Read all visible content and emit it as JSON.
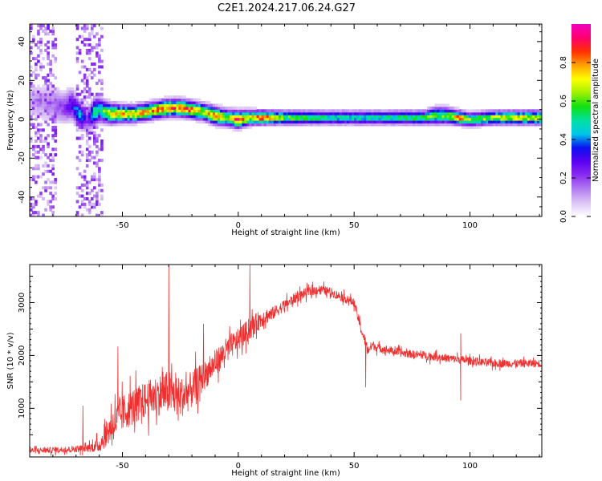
{
  "figure": {
    "title": "C2E1.2024.217.06.24.G27"
  },
  "colors": {
    "snr_line": "#ee3030",
    "colormap": [
      "#ffffff",
      "#dcc6f5",
      "#b27cf0",
      "#8a2df0",
      "#5a00f0",
      "#0a10f0",
      "#00c8e8",
      "#00e0a0",
      "#10e010",
      "#a0f000",
      "#ffff00",
      "#ffa000",
      "#ff3000",
      "#ff0070",
      "#f000c0"
    ]
  },
  "chart_data": [
    {
      "type": "heatmap",
      "title": "",
      "xlabel": "Height of straight line (km)",
      "ylabel": "Frequency (Hz)",
      "xlim": [
        -90,
        131
      ],
      "ylim": [
        -50,
        49
      ],
      "xticks": [
        -50,
        0,
        50,
        100
      ],
      "yticks": [
        -40,
        -20,
        0,
        20,
        40
      ],
      "colorbar": {
        "label": "Normalized spectral amplitude",
        "range": [
          0,
          1
        ],
        "ticks": [
          0.0,
          0.2,
          0.4,
          0.6,
          0.8
        ]
      },
      "ridge": {
        "x": [
          -90,
          -80,
          -75,
          -72,
          -68,
          -65,
          -62,
          -60,
          -55,
          -50,
          -45,
          -40,
          -35,
          -30,
          -25,
          -20,
          -15,
          -10,
          -5,
          0,
          5,
          10,
          20,
          40,
          60,
          80,
          85,
          90,
          95,
          100,
          110,
          120,
          131
        ],
        "frequency_hz": [
          10,
          8,
          6,
          8,
          2,
          0,
          4,
          5,
          3,
          3,
          3,
          4,
          5,
          6,
          6,
          5,
          4,
          2,
          1,
          0,
          1,
          1,
          1,
          1,
          1,
          1,
          2,
          2,
          1,
          0,
          1,
          1,
          1
        ],
        "amplitude": [
          0.1,
          0.15,
          0.2,
          0.3,
          0.45,
          0.2,
          0.55,
          0.5,
          0.7,
          0.75,
          0.75,
          0.78,
          0.8,
          0.82,
          0.8,
          0.85,
          0.65,
          0.85,
          0.6,
          0.9,
          0.7,
          0.85,
          0.6,
          0.5,
          0.5,
          0.55,
          0.6,
          0.55,
          0.85,
          0.6,
          0.65,
          0.7,
          0.7
        ],
        "bandwidth_hz": [
          6,
          6,
          5,
          5,
          4,
          4,
          4,
          3.5,
          3,
          2.5,
          2.5,
          2.5,
          2.5,
          2.5,
          2.5,
          2.5,
          2.5,
          2.5,
          2.5,
          2.5,
          2.2,
          2,
          2,
          2,
          2,
          2,
          2.5,
          2.5,
          2,
          2,
          2,
          2,
          2
        ]
      },
      "noise_band": {
        "x_range": [
          -90,
          -58
        ],
        "amplitude": 0.2
      }
    },
    {
      "type": "line",
      "title": "",
      "xlabel": "Height of straight line (km)",
      "ylabel": "SNR (10 * v/v)",
      "xlim": [
        -90,
        131
      ],
      "ylim": [
        80,
        3720
      ],
      "xticks": [
        -50,
        0,
        50,
        100
      ],
      "yticks": [
        1000,
        2000,
        3000
      ],
      "series": [
        {
          "x": [
            -90,
            -80,
            -70,
            -65,
            -60,
            -55,
            -50,
            -45,
            -40,
            -35,
            -30,
            -25,
            -20,
            -15,
            -10,
            -5,
            0,
            5,
            10,
            15,
            20,
            25,
            30,
            35,
            40,
            45,
            50,
            53,
            56,
            58,
            60,
            70,
            80,
            90,
            100,
            110,
            120,
            131
          ],
          "values": [
            200,
            210,
            230,
            250,
            300,
            650,
            900,
            1050,
            1150,
            1250,
            1300,
            1200,
            1350,
            1600,
            1850,
            2100,
            2300,
            2500,
            2700,
            2800,
            2950,
            3100,
            3200,
            3250,
            3200,
            3100,
            3000,
            2500,
            2100,
            2200,
            2150,
            2050,
            2000,
            1950,
            1900,
            1850,
            1850,
            1850
          ],
          "spread": [
            80,
            80,
            90,
            110,
            200,
            450,
            500,
            500,
            500,
            550,
            600,
            550,
            500,
            400,
            350,
            350,
            300,
            300,
            250,
            180,
            150,
            150,
            130,
            130,
            120,
            120,
            120,
            150,
            150,
            120,
            120,
            110,
            110,
            110,
            110,
            110,
            110,
            110
          ],
          "spikes": [
            {
              "x": -67,
              "y": 1050
            },
            {
              "x": -52,
              "y": 2170
            },
            {
              "x": -30,
              "y": 3700
            },
            {
              "x": -15,
              "y": 2600
            },
            {
              "x": 5,
              "y": 3720
            },
            {
              "x": 55,
              "y": 1400
            },
            {
              "x": 96,
              "y": 1150
            },
            {
              "x": 96,
              "y": 2420
            }
          ]
        }
      ]
    }
  ]
}
